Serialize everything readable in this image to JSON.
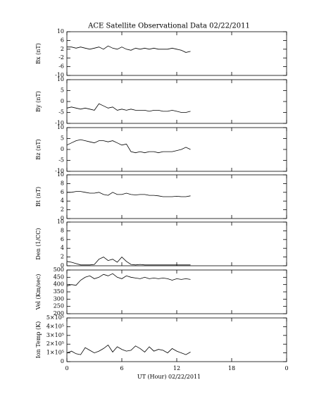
{
  "chart_data": [
    {
      "type": "line",
      "title": "ACE Satellite Observational Data   02/22/2011",
      "ylabel": "Bx (nT)",
      "x": [
        0,
        0.5,
        1,
        1.5,
        2,
        2.5,
        3,
        3.5,
        4,
        4.5,
        5,
        5.5,
        6,
        6.5,
        7,
        7.5,
        8,
        8.5,
        9,
        9.5,
        10,
        10.5,
        11,
        11.5,
        12,
        12.5,
        13,
        13.5
      ],
      "values": [
        3,
        3,
        2.5,
        3,
        2.5,
        2,
        2.5,
        3,
        2,
        3.5,
        2.5,
        2,
        3,
        2,
        1.5,
        2.5,
        2,
        2.5,
        2,
        2.5,
        2,
        2,
        2,
        2.5,
        2,
        1.5,
        0.5,
        1
      ],
      "xlim": [
        0,
        24
      ],
      "xticks": [
        0,
        6,
        12,
        18,
        {
          "value": 24,
          "label": "0"
        }
      ],
      "ylim": [
        -10,
        10
      ],
      "yticks": [
        -10,
        -6,
        -2,
        2,
        6,
        10
      ],
      "color": "#000000"
    },
    {
      "type": "line",
      "ylabel": "By (nT)",
      "x": [
        0,
        0.5,
        1,
        1.5,
        2,
        2.5,
        3,
        3.5,
        4,
        4.5,
        5,
        5.5,
        6,
        6.5,
        7,
        7.5,
        8,
        8.5,
        9,
        9.5,
        10,
        10.5,
        11,
        11.5,
        12,
        12.5,
        13,
        13.5
      ],
      "values": [
        -3,
        -2.5,
        -3,
        -3.5,
        -3,
        -3.5,
        -4,
        -1,
        -2,
        -3,
        -2.5,
        -4,
        -3.5,
        -4,
        -3.5,
        -4,
        -4,
        -4,
        -4.5,
        -4,
        -4,
        -4.5,
        -4.5,
        -4,
        -4.5,
        -5,
        -5,
        -4.5
      ],
      "xlim": [
        0,
        24
      ],
      "xticks": [
        0,
        6,
        12,
        18,
        {
          "value": 24,
          "label": "0"
        }
      ],
      "ylim": [
        -10,
        10
      ],
      "yticks": [
        -10,
        -5,
        0,
        5,
        10
      ],
      "color": "#000000"
    },
    {
      "type": "line",
      "ylabel": "Bz (nT)",
      "x": [
        0,
        0.5,
        1,
        1.5,
        2,
        2.5,
        3,
        3.5,
        4,
        4.5,
        5,
        5.5,
        6,
        6.5,
        7,
        7.5,
        8,
        8.5,
        9,
        9.5,
        10,
        10.5,
        11,
        11.5,
        12,
        12.5,
        13,
        13.5
      ],
      "values": [
        2,
        3,
        4,
        4.5,
        4,
        3.5,
        3,
        4,
        4,
        3.5,
        4,
        3,
        2,
        2.5,
        -1,
        -1.5,
        -1,
        -1.5,
        -1,
        -1,
        -1.5,
        -1,
        -1,
        -1,
        -0.5,
        0,
        1,
        0
      ],
      "xlim": [
        0,
        24
      ],
      "xticks": [
        0,
        6,
        12,
        18,
        {
          "value": 24,
          "label": "0"
        }
      ],
      "ylim": [
        -10,
        10
      ],
      "yticks": [
        -10,
        -5,
        0,
        5,
        10
      ],
      "color": "#000000"
    },
    {
      "type": "line",
      "ylabel": "Bt (nT)",
      "x": [
        0,
        0.5,
        1,
        1.5,
        2,
        2.5,
        3,
        3.5,
        4,
        4.5,
        5,
        5.5,
        6,
        6.5,
        7,
        7.5,
        8,
        8.5,
        9,
        9.5,
        10,
        10.5,
        11,
        11.5,
        12,
        12.5,
        13,
        13.5
      ],
      "values": [
        6,
        6,
        6.2,
        6.2,
        6,
        5.8,
        5.8,
        6,
        5.5,
        5.3,
        6,
        5.5,
        5.5,
        5.8,
        5.5,
        5.4,
        5.5,
        5.5,
        5.3,
        5.3,
        5.2,
        5,
        5,
        5,
        5.1,
        5,
        5,
        5.2
      ],
      "xlim": [
        0,
        24
      ],
      "xticks": [
        0,
        6,
        12,
        18,
        {
          "value": 24,
          "label": "0"
        }
      ],
      "ylim": [
        0,
        10
      ],
      "yticks": [
        0,
        2,
        4,
        6,
        8,
        10
      ],
      "color": "#000000"
    },
    {
      "type": "line",
      "ylabel": "Den (1/CC)",
      "x": [
        0,
        0.5,
        1,
        1.5,
        2,
        2.5,
        3,
        3.5,
        4,
        4.5,
        5,
        5.5,
        6,
        6.5,
        7,
        7.5,
        8,
        8.5,
        9,
        9.5,
        10,
        10.5,
        11,
        11.5,
        12,
        12.5,
        13,
        13.5
      ],
      "values": [
        1,
        0.8,
        0.5,
        0.2,
        0.2,
        0.2,
        0.3,
        1.5,
        2,
        1.2,
        1.5,
        0.8,
        2,
        1,
        0.3,
        0.2,
        0.3,
        0.2,
        0.2,
        0.2,
        0.2,
        0.2,
        0.2,
        0.2,
        0.2,
        0.2,
        0.2,
        0.2
      ],
      "xlim": [
        0,
        24
      ],
      "xticks": [
        0,
        6,
        12,
        18,
        {
          "value": 24,
          "label": "0"
        }
      ],
      "ylim": [
        0,
        10
      ],
      "yticks": [
        0,
        2,
        4,
        6,
        8,
        10
      ],
      "color": "#000000"
    },
    {
      "type": "line",
      "ylabel": "Vel (Km/sec)",
      "x": [
        0,
        0.5,
        1,
        1.5,
        2,
        2.5,
        3,
        3.5,
        4,
        4.5,
        5,
        5.5,
        6,
        6.5,
        7,
        7.5,
        8,
        8.5,
        9,
        9.5,
        10,
        10.5,
        11,
        11.5,
        12,
        12.5,
        13,
        13.5
      ],
      "values": [
        390,
        400,
        395,
        430,
        450,
        460,
        440,
        450,
        470,
        460,
        475,
        450,
        440,
        460,
        450,
        445,
        440,
        450,
        440,
        445,
        440,
        445,
        440,
        430,
        440,
        435,
        440,
        435
      ],
      "xlim": [
        0,
        24
      ],
      "xticks": [
        0,
        6,
        12,
        18,
        {
          "value": 24,
          "label": "0"
        }
      ],
      "ylim": [
        200,
        500
      ],
      "yticks": [
        200,
        250,
        300,
        350,
        400,
        450,
        500
      ],
      "color": "#000000"
    },
    {
      "type": "line",
      "ylabel": "Ion Temp (K)",
      "xlabel": "UT (Hour)   02/22/2011",
      "x": [
        0,
        0.5,
        1,
        1.5,
        2,
        2.5,
        3,
        3.5,
        4,
        4.5,
        5,
        5.5,
        6,
        6.5,
        7,
        7.5,
        8,
        8.5,
        9,
        9.5,
        10,
        10.5,
        11,
        11.5,
        12,
        12.5,
        13,
        13.5
      ],
      "values": [
        100000,
        120000,
        90000,
        80000,
        160000,
        130000,
        100000,
        120000,
        150000,
        190000,
        110000,
        170000,
        140000,
        120000,
        130000,
        180000,
        150000,
        110000,
        170000,
        120000,
        140000,
        130000,
        100000,
        150000,
        120000,
        100000,
        80000,
        110000
      ],
      "xlim": [
        0,
        24
      ],
      "xticks": [
        0,
        6,
        12,
        18,
        {
          "value": 24,
          "label": "0"
        }
      ],
      "ylim": [
        0,
        500000
      ],
      "yticks": [
        0,
        {
          "value": 100000,
          "label": "1×10⁵"
        },
        {
          "value": 200000,
          "label": "2×10⁵"
        },
        {
          "value": 300000,
          "label": "3×10⁵"
        },
        {
          "value": 400000,
          "label": "4×10⁵"
        },
        {
          "value": 500000,
          "label": "5×10⁵"
        }
      ],
      "color": "#000000"
    }
  ]
}
